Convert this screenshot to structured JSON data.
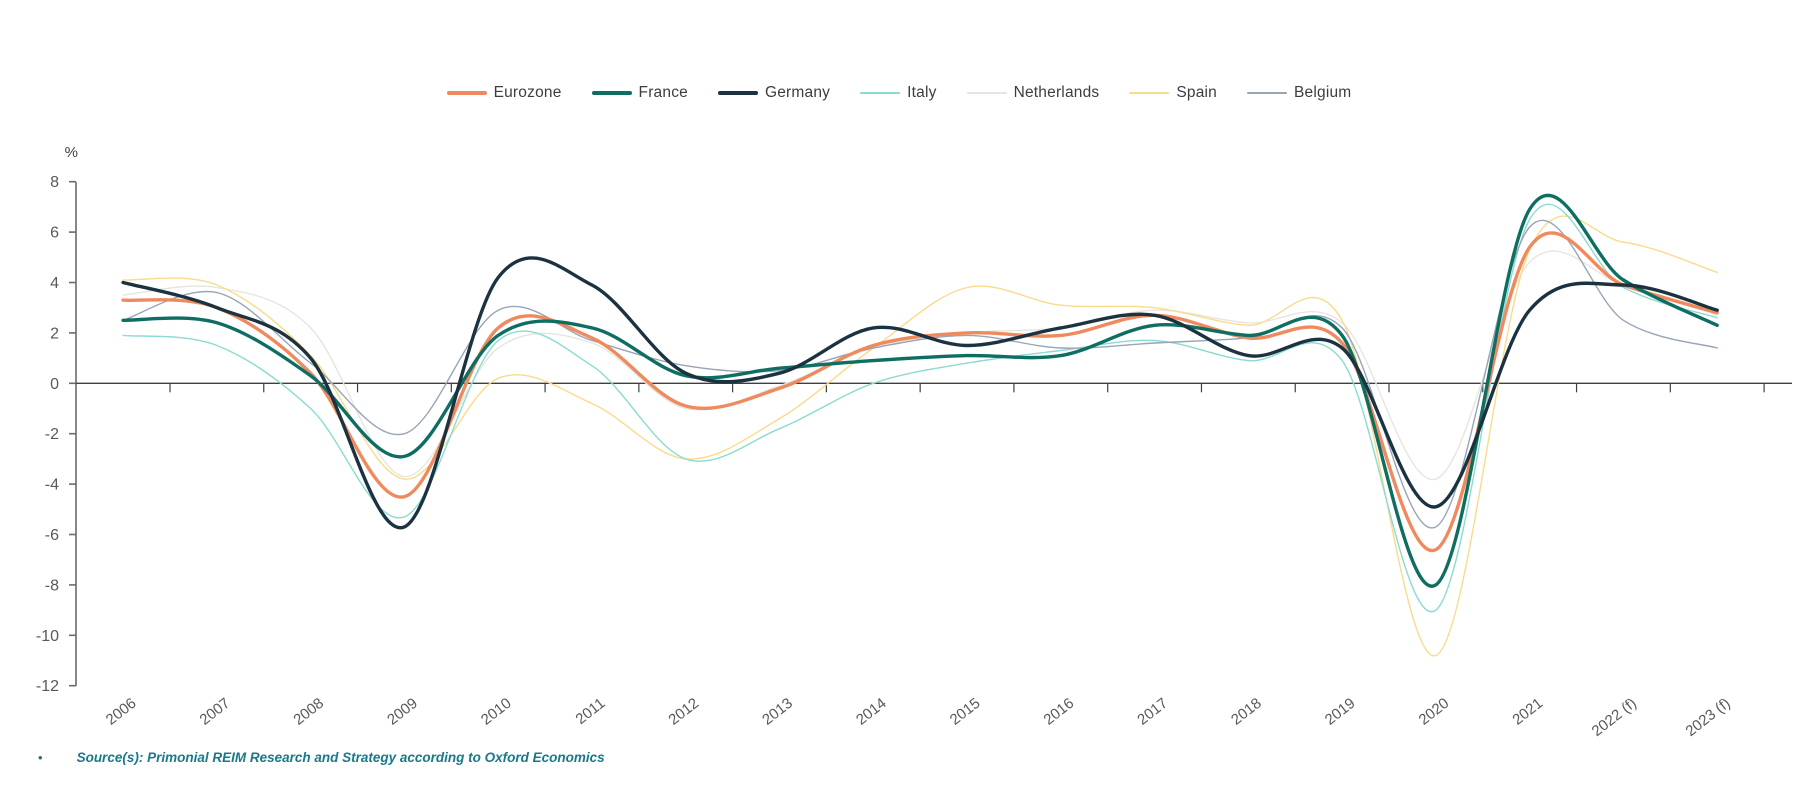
{
  "chart_data": {
    "type": "line",
    "title": "",
    "unit_label": "%",
    "x_categories": [
      "2006",
      "2007",
      "2008",
      "2009",
      "2010",
      "2011",
      "2012",
      "2013",
      "2014",
      "2015",
      "2016",
      "2017",
      "2018",
      "2019",
      "2020",
      "2021",
      "2022 (f)",
      "2023 (f)"
    ],
    "y_tick_labels": [
      "8",
      "6",
      "4",
      "2",
      "0",
      "-2",
      "-4",
      "-6",
      "-8",
      "-10",
      "-12"
    ],
    "ylim": [
      -12,
      8
    ],
    "ytick_step": 2,
    "grid": false,
    "legend_position": "top-center",
    "smoothing": "catmull-rom",
    "series": [
      {
        "name": "Eurozone",
        "color": "#EF8A5E",
        "width": 3.4,
        "values": [
          3.3,
          3.0,
          0.4,
          -4.5,
          2.2,
          1.8,
          -0.9,
          -0.2,
          1.5,
          2.0,
          1.9,
          2.7,
          1.8,
          1.6,
          -6.6,
          5.4,
          3.9,
          2.8
        ]
      },
      {
        "name": "France",
        "color": "#0E6E62",
        "width": 3.4,
        "values": [
          2.5,
          2.4,
          0.3,
          -2.9,
          1.9,
          2.2,
          0.3,
          0.6,
          0.9,
          1.1,
          1.1,
          2.3,
          1.9,
          1.9,
          -8.0,
          6.9,
          4.1,
          2.3
        ]
      },
      {
        "name": "Germany",
        "color": "#1B3240",
        "width": 3.4,
        "values": [
          4.0,
          3.0,
          1.0,
          -5.7,
          4.2,
          3.9,
          0.4,
          0.4,
          2.2,
          1.5,
          2.2,
          2.7,
          1.1,
          1.4,
          -4.9,
          2.9,
          3.9,
          2.9
        ]
      },
      {
        "name": "Italy",
        "color": "#8ADBD0",
        "width": 1.4,
        "values": [
          1.9,
          1.5,
          -1.0,
          -5.3,
          1.7,
          0.7,
          -3.0,
          -1.8,
          0.0,
          0.8,
          1.3,
          1.7,
          0.9,
          0.9,
          -9.0,
          6.5,
          3.8,
          2.6
        ]
      },
      {
        "name": "Netherlands",
        "color": "#E6E5E0",
        "width": 1.4,
        "values": [
          3.5,
          3.8,
          2.2,
          -3.7,
          1.4,
          1.6,
          -1.0,
          -0.1,
          1.4,
          2.0,
          2.2,
          2.9,
          2.4,
          2.4,
          -3.8,
          4.8,
          3.9,
          2.7
        ]
      },
      {
        "name": "Spain",
        "color": "#FADB8A",
        "width": 1.4,
        "values": [
          4.1,
          3.9,
          1.1,
          -3.8,
          0.2,
          -0.8,
          -3.0,
          -1.4,
          1.4,
          3.8,
          3.1,
          3.0,
          2.3,
          2.5,
          -10.8,
          5.3,
          5.6,
          4.4
        ]
      },
      {
        "name": "Belgium",
        "color": "#97A5B7",
        "width": 1.4,
        "values": [
          2.5,
          3.6,
          0.8,
          -2.0,
          2.9,
          1.7,
          0.7,
          0.5,
          1.4,
          1.9,
          1.4,
          1.6,
          1.8,
          2.2,
          -5.7,
          6.2,
          2.5,
          1.4
        ]
      }
    ]
  },
  "colors": {
    "axis": "#6b6b6b",
    "zero_line": "#3f3f3f",
    "tick_label": "#595959",
    "legend_text": "#3d3d3d",
    "source_text": "#18798a"
  },
  "source_note": {
    "bullet": "•",
    "text": "Source(s): Primonial REIM Research and Strategy according to Oxford Economics"
  }
}
